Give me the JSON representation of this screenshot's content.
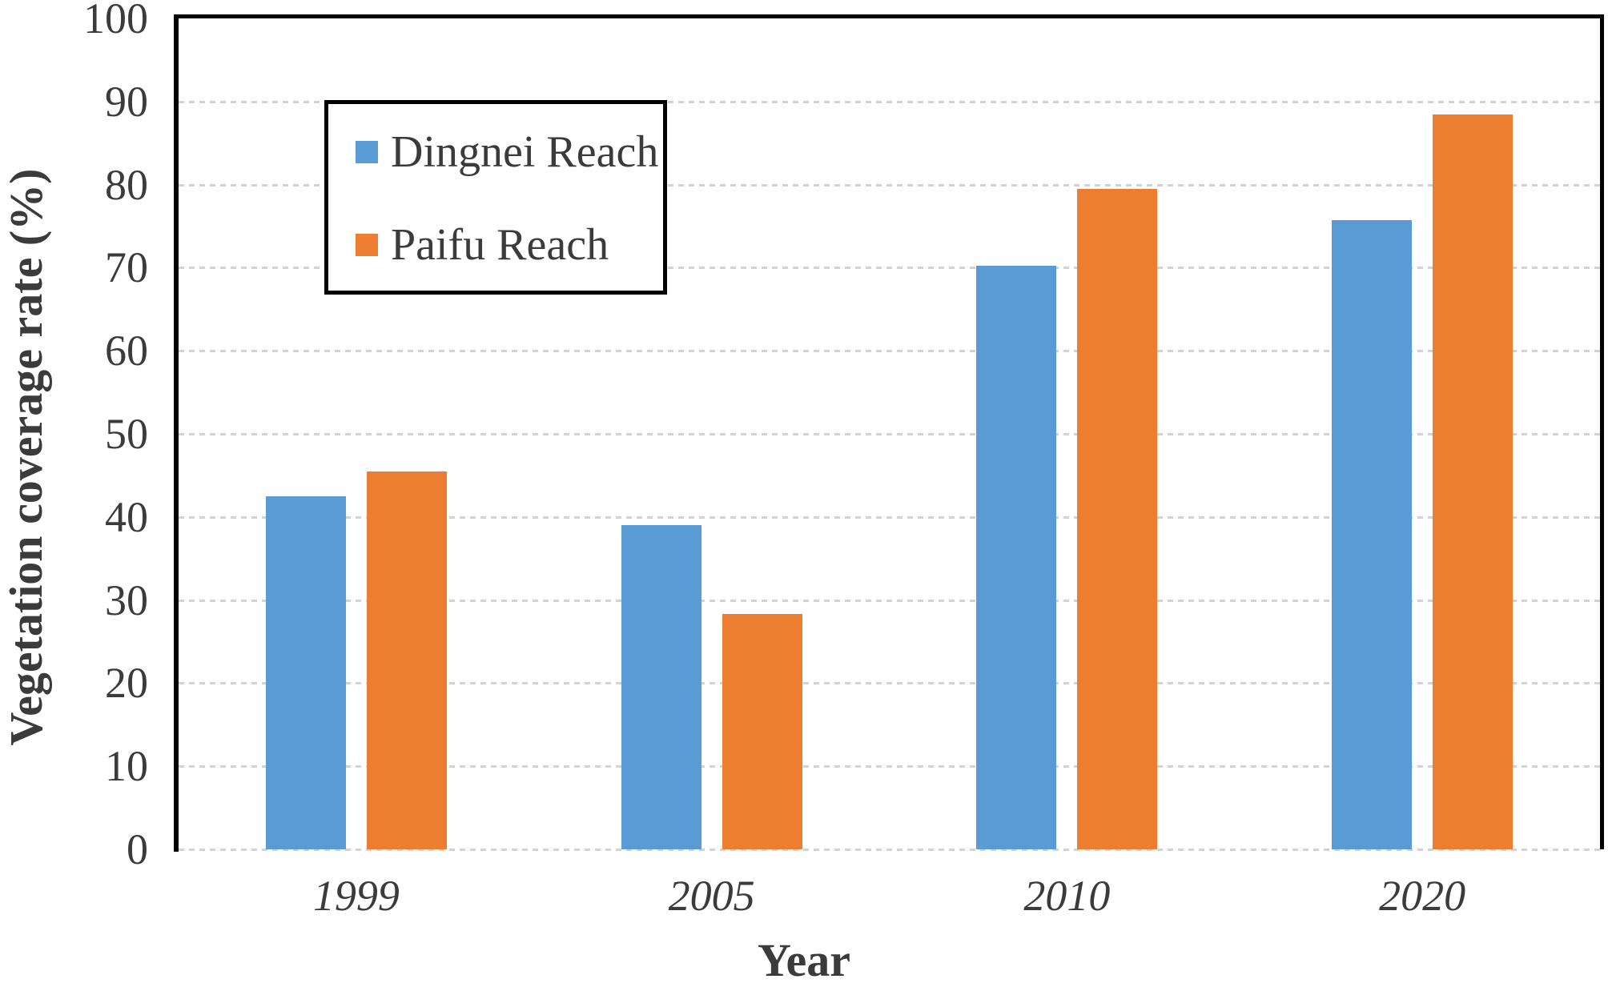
{
  "chart_data": {
    "type": "bar",
    "title": "",
    "categories": [
      "1999",
      "2005",
      "2010",
      "2020"
    ],
    "series": [
      {
        "name": "Dingnei Reach",
        "color": "#5B9BD5",
        "values": [
          42.5,
          39.0,
          70.2,
          75.7
        ]
      },
      {
        "name": "Paifu Reach",
        "color": "#ED7D31",
        "values": [
          45.5,
          28.3,
          79.5,
          88.4
        ]
      }
    ],
    "xlabel": "Year",
    "ylabel": "Vegetation coverage rate (%)",
    "ylim": [
      0,
      100
    ],
    "ytick_step": 10,
    "yticks": [
      "0",
      "10",
      "20",
      "30",
      "40",
      "50",
      "60",
      "70",
      "80",
      "90",
      "100"
    ],
    "grid": true,
    "gridline_color": "#d2d2d2",
    "axis_color": "#000000",
    "text_color": "#3b3b3b",
    "legend_position": "inside-top-left"
  }
}
